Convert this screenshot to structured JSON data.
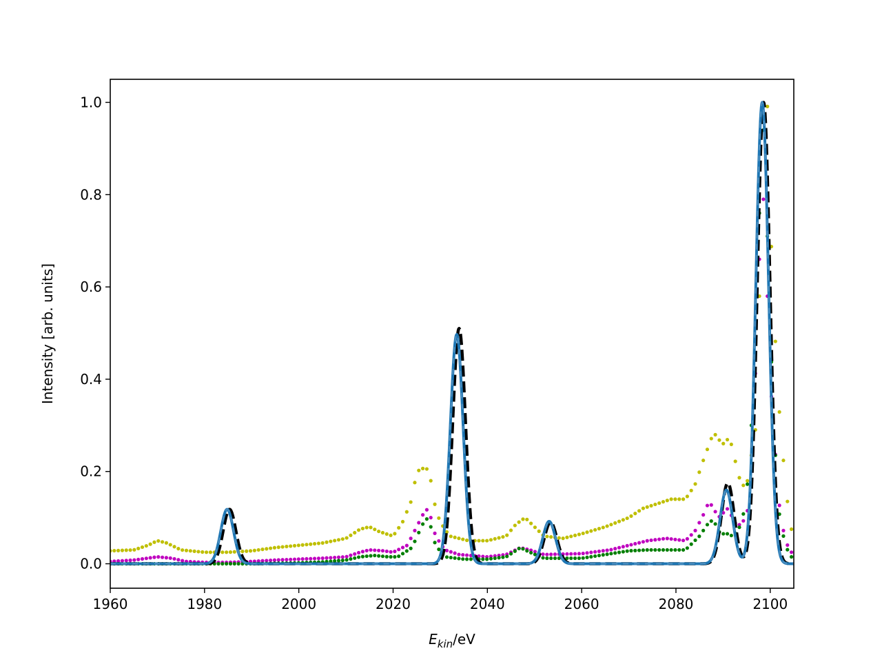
{
  "chart_data": {
    "type": "line",
    "title": "",
    "xlabel_main": "E",
    "xlabel_sub": "kin",
    "xlabel_unit": "/eV",
    "ylabel": "Intensity [arb. units]",
    "xlim": [
      1960,
      2105
    ],
    "ylim": [
      -0.053,
      1.05
    ],
    "xticks": [
      1960,
      1980,
      2000,
      2020,
      2040,
      2060,
      2080,
      2100
    ],
    "xtick_labels": [
      "1960",
      "1980",
      "2000",
      "2020",
      "2040",
      "2060",
      "2080",
      "2100"
    ],
    "yticks": [
      0.0,
      0.2,
      0.4,
      0.6,
      0.8,
      1.0
    ],
    "ytick_labels": [
      "0.0",
      "0.2",
      "0.4",
      "0.6",
      "0.8",
      "1.0"
    ],
    "grid": false,
    "legend": "none",
    "series": [
      {
        "style": "dotted",
        "color": "#bfbf00",
        "points": [
          [
            1960,
            0.028
          ],
          [
            1965,
            0.03
          ],
          [
            1968,
            0.04
          ],
          [
            1970,
            0.05
          ],
          [
            1972,
            0.045
          ],
          [
            1975,
            0.03
          ],
          [
            1980,
            0.025
          ],
          [
            1985,
            0.025
          ],
          [
            1990,
            0.028
          ],
          [
            1995,
            0.035
          ],
          [
            2000,
            0.04
          ],
          [
            2005,
            0.045
          ],
          [
            2010,
            0.055
          ],
          [
            2013,
            0.075
          ],
          [
            2015,
            0.08
          ],
          [
            2017,
            0.07
          ],
          [
            2020,
            0.06
          ],
          [
            2022,
            0.09
          ],
          [
            2024,
            0.14
          ],
          [
            2025,
            0.2
          ],
          [
            2027,
            0.21
          ],
          [
            2028,
            0.18
          ],
          [
            2029,
            0.12
          ],
          [
            2030,
            0.09
          ],
          [
            2032,
            0.06
          ],
          [
            2036,
            0.05
          ],
          [
            2040,
            0.05
          ],
          [
            2044,
            0.06
          ],
          [
            2046,
            0.085
          ],
          [
            2048,
            0.1
          ],
          [
            2050,
            0.08
          ],
          [
            2052,
            0.06
          ],
          [
            2056,
            0.055
          ],
          [
            2060,
            0.065
          ],
          [
            2065,
            0.08
          ],
          [
            2070,
            0.1
          ],
          [
            2073,
            0.12
          ],
          [
            2076,
            0.13
          ],
          [
            2079,
            0.14
          ],
          [
            2082,
            0.14
          ],
          [
            2084,
            0.17
          ],
          [
            2086,
            0.23
          ],
          [
            2088,
            0.285
          ],
          [
            2089,
            0.27
          ],
          [
            2090,
            0.26
          ],
          [
            2091,
            0.27
          ],
          [
            2092,
            0.255
          ],
          [
            2093,
            0.2
          ],
          [
            2094,
            0.17
          ],
          [
            2095,
            0.17
          ],
          [
            2097,
            0.3
          ],
          [
            2098,
            0.7
          ],
          [
            2098.6,
            1.0
          ],
          [
            2099.5,
            0.99
          ],
          [
            2100,
            0.75
          ],
          [
            2101,
            0.5
          ],
          [
            2102,
            0.32
          ],
          [
            2103,
            0.2
          ],
          [
            2104,
            0.1
          ],
          [
            2105,
            0.05
          ]
        ]
      },
      {
        "style": "dotted",
        "color": "#bf00bf",
        "points": [
          [
            1960,
            0.005
          ],
          [
            1965,
            0.008
          ],
          [
            1970,
            0.015
          ],
          [
            1973,
            0.012
          ],
          [
            1976,
            0.005
          ],
          [
            1980,
            0.003
          ],
          [
            1985,
            0.003
          ],
          [
            1990,
            0.005
          ],
          [
            1995,
            0.008
          ],
          [
            2000,
            0.01
          ],
          [
            2005,
            0.012
          ],
          [
            2010,
            0.015
          ],
          [
            2013,
            0.025
          ],
          [
            2015,
            0.03
          ],
          [
            2018,
            0.028
          ],
          [
            2020,
            0.025
          ],
          [
            2023,
            0.04
          ],
          [
            2025,
            0.08
          ],
          [
            2027,
            0.12
          ],
          [
            2028,
            0.1
          ],
          [
            2029,
            0.06
          ],
          [
            2031,
            0.03
          ],
          [
            2034,
            0.02
          ],
          [
            2040,
            0.015
          ],
          [
            2044,
            0.02
          ],
          [
            2047,
            0.035
          ],
          [
            2049,
            0.03
          ],
          [
            2052,
            0.02
          ],
          [
            2060,
            0.022
          ],
          [
            2066,
            0.03
          ],
          [
            2070,
            0.04
          ],
          [
            2074,
            0.05
          ],
          [
            2078,
            0.055
          ],
          [
            2082,
            0.05
          ],
          [
            2084,
            0.07
          ],
          [
            2086,
            0.11
          ],
          [
            2087,
            0.135
          ],
          [
            2088,
            0.12
          ],
          [
            2089,
            0.1
          ],
          [
            2090,
            0.11
          ],
          [
            2091,
            0.12
          ],
          [
            2092,
            0.1
          ],
          [
            2093,
            0.08
          ],
          [
            2095,
            0.1
          ],
          [
            2096,
            0.2
          ],
          [
            2097,
            0.45
          ],
          [
            2098,
            0.75
          ],
          [
            2098.5,
            0.8
          ],
          [
            2099,
            0.7
          ],
          [
            2100,
            0.4
          ],
          [
            2101,
            0.25
          ],
          [
            2102,
            0.12
          ],
          [
            2103,
            0.06
          ],
          [
            2104,
            0.03
          ],
          [
            2105,
            0.02
          ]
        ]
      },
      {
        "style": "dotted",
        "color": "#007f00",
        "points": [
          [
            1960,
            0.0
          ],
          [
            1970,
            0.0
          ],
          [
            1980,
            0.0
          ],
          [
            1990,
            0.0
          ],
          [
            2000,
            0.002
          ],
          [
            2005,
            0.004
          ],
          [
            2010,
            0.008
          ],
          [
            2013,
            0.015
          ],
          [
            2016,
            0.018
          ],
          [
            2019,
            0.015
          ],
          [
            2021,
            0.015
          ],
          [
            2024,
            0.035
          ],
          [
            2026,
            0.08
          ],
          [
            2027,
            0.1
          ],
          [
            2028,
            0.08
          ],
          [
            2029,
            0.04
          ],
          [
            2031,
            0.015
          ],
          [
            2035,
            0.01
          ],
          [
            2040,
            0.01
          ],
          [
            2044,
            0.015
          ],
          [
            2047,
            0.035
          ],
          [
            2049,
            0.025
          ],
          [
            2052,
            0.012
          ],
          [
            2060,
            0.012
          ],
          [
            2065,
            0.02
          ],
          [
            2070,
            0.028
          ],
          [
            2074,
            0.03
          ],
          [
            2078,
            0.03
          ],
          [
            2082,
            0.03
          ],
          [
            2085,
            0.06
          ],
          [
            2087,
            0.09
          ],
          [
            2088,
            0.095
          ],
          [
            2089,
            0.07
          ],
          [
            2090,
            0.065
          ],
          [
            2091,
            0.065
          ],
          [
            2092,
            0.06
          ],
          [
            2093,
            0.07
          ],
          [
            2094,
            0.09
          ],
          [
            2095,
            0.15
          ],
          [
            2096,
            0.3
          ],
          [
            2097,
            0.55
          ],
          [
            2098,
            0.85
          ],
          [
            2098.5,
            0.95
          ],
          [
            2099,
            0.85
          ],
          [
            2100,
            0.5
          ],
          [
            2101,
            0.25
          ],
          [
            2102,
            0.1
          ],
          [
            2103,
            0.05
          ],
          [
            2104,
            0.02
          ],
          [
            2105,
            0.01
          ]
        ]
      },
      {
        "style": "dashed",
        "color": "#000000",
        "peaks": [
          {
            "center": 1985.3,
            "height": 0.118,
            "sigma": 1.35
          },
          {
            "center": 2034.0,
            "height": 0.51,
            "sigma": 1.35
          },
          {
            "center": 2053.4,
            "height": 0.09,
            "sigma": 1.35
          },
          {
            "center": 2091.0,
            "height": 0.175,
            "sigma": 1.35
          },
          {
            "center": 2098.6,
            "height": 1.0,
            "sigma": 1.35
          }
        ]
      },
      {
        "style": "solid",
        "color": "#1f77b4",
        "peaks": [
          {
            "center": 1984.8,
            "height": 0.118,
            "sigma": 1.35
          },
          {
            "center": 2033.5,
            "height": 0.497,
            "sigma": 1.35
          },
          {
            "center": 2053.1,
            "height": 0.092,
            "sigma": 1.35
          },
          {
            "center": 2090.7,
            "height": 0.16,
            "sigma": 1.35
          },
          {
            "center": 2098.3,
            "height": 1.0,
            "sigma": 1.35
          }
        ]
      },
      {
        "style": "overlay-dashed",
        "color": "#4f8fbf",
        "peaks_ref": 4
      }
    ]
  }
}
